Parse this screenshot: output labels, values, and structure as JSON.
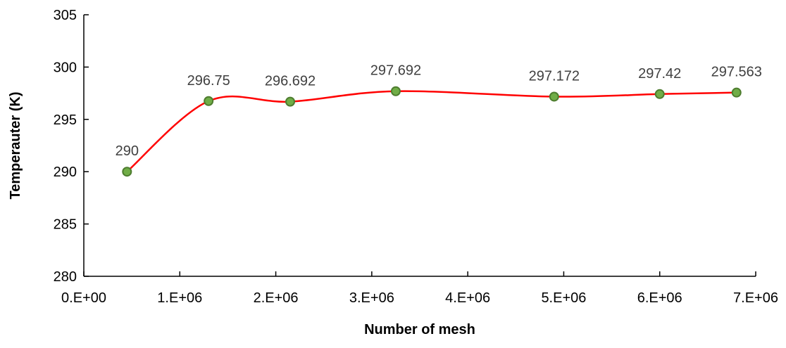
{
  "chart_data": {
    "type": "line",
    "xlabel": "Number of mesh",
    "ylabel": "Temperauter (K)",
    "xlim": [
      0,
      7000000
    ],
    "ylim": [
      280,
      305
    ],
    "x_ticks": [
      0,
      1000000,
      2000000,
      3000000,
      4000000,
      5000000,
      6000000,
      7000000
    ],
    "x_tick_labels": [
      "0.E+00",
      "1.E+06",
      "2.E+06",
      "3.E+06",
      "4.E+06",
      "5.E+06",
      "6.E+06",
      "7.E+06"
    ],
    "y_ticks": [
      280,
      285,
      290,
      295,
      300,
      305
    ],
    "y_tick_labels": [
      "280",
      "285",
      "290",
      "295",
      "300",
      "305"
    ],
    "grid": false,
    "smooth": true,
    "series": [
      {
        "x": [
          450000,
          1300000,
          2150000,
          3250000,
          4900000,
          6000000,
          6800000
        ],
        "y": [
          290,
          296.75,
          296.692,
          297.692,
          297.172,
          297.42,
          297.563
        ],
        "labels": [
          "290",
          "296.75",
          "296.692",
          "297.692",
          "297.172",
          "297.42",
          "297.563"
        ],
        "line_color": "#ff0000",
        "marker_fill": "#70ad47",
        "marker_stroke": "#4e7d2f"
      }
    ]
  }
}
